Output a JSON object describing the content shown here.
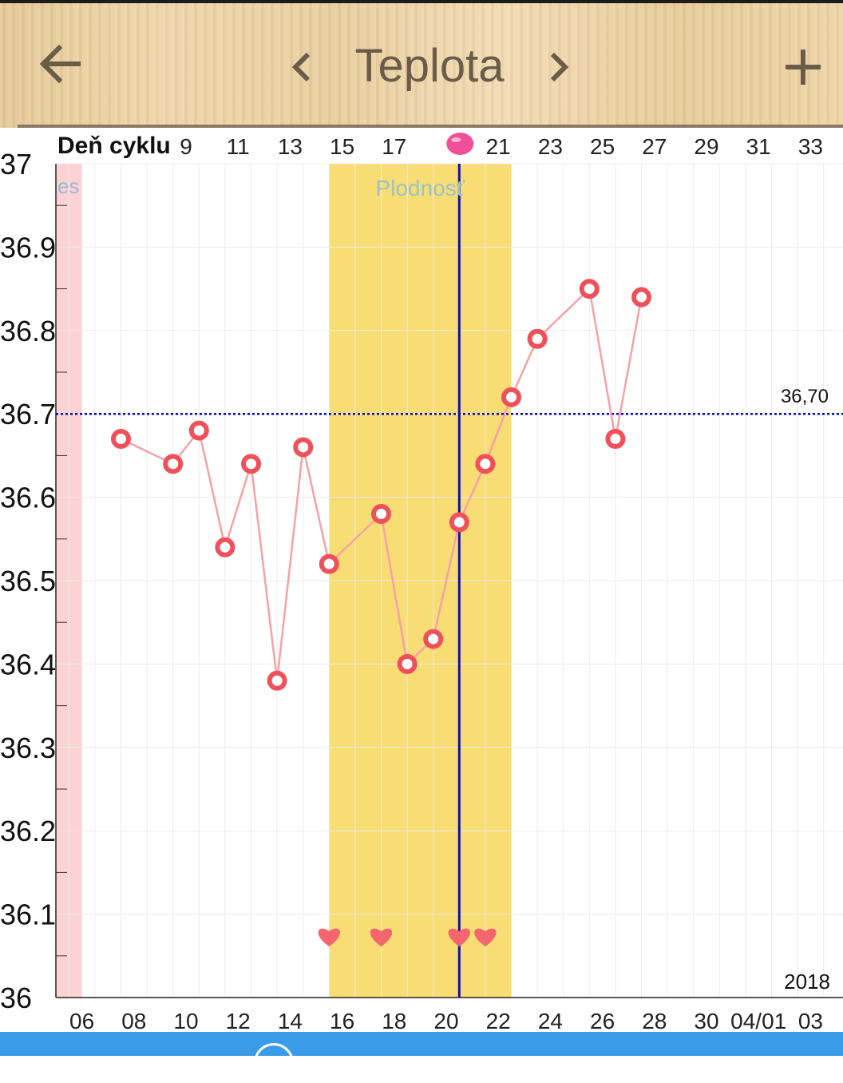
{
  "header": {
    "title": "Teplota",
    "back_icon": "arrow-left-icon",
    "prev_icon": "chevron-left-icon",
    "next_icon": "chevron-right-icon",
    "add_icon": "plus-icon"
  },
  "chart_data": {
    "type": "line",
    "cycle_day_label": "Deň cyklu",
    "cycle_days": [
      "9",
      "11",
      "13",
      "15",
      "17",
      "21",
      "23",
      "25",
      "27",
      "29",
      "31",
      "33"
    ],
    "ovulation_cycle_day": 19,
    "x_tick_labels": [
      "06",
      "08",
      "10",
      "12",
      "14",
      "16",
      "18",
      "20",
      "22",
      "24",
      "26",
      "28",
      "30",
      "04/01",
      "03"
    ],
    "y_tick_labels": [
      "36",
      "36.1",
      "36.2",
      "36.3",
      "36.4",
      "36.5",
      "36.6",
      "36.7",
      "36.8",
      "36.9",
      "37"
    ],
    "ylim": [
      36.0,
      37.0
    ],
    "xlim": [
      "2018-03-05",
      "2018-04-04"
    ],
    "year_label": "2018",
    "coverline": {
      "value": 36.7,
      "label": "36,70"
    },
    "period_band": {
      "from": "2018-03-05",
      "to": "2018-03-06",
      "label": "es"
    },
    "fertile_window": {
      "from": "2018-03-15",
      "to": "2018-03-22",
      "label": "Plodnosť"
    },
    "ovulation_day": "2018-03-20",
    "intercourse_days": [
      "2018-03-15",
      "2018-03-17",
      "2018-03-20",
      "2018-03-21"
    ],
    "series": [
      {
        "x": [
          "2018-03-07",
          "2018-03-09",
          "2018-03-10",
          "2018-03-11",
          "2018-03-12",
          "2018-03-13",
          "2018-03-14",
          "2018-03-15",
          "2018-03-17",
          "2018-03-18",
          "2018-03-19",
          "2018-03-20",
          "2018-03-21",
          "2018-03-22",
          "2018-03-23",
          "2018-03-25",
          "2018-03-26",
          "2018-03-27"
        ],
        "values": [
          36.67,
          36.64,
          36.68,
          36.54,
          36.64,
          36.38,
          36.66,
          36.52,
          36.58,
          36.4,
          36.43,
          36.57,
          36.64,
          36.72,
          36.79,
          36.85,
          36.67,
          36.84
        ]
      }
    ],
    "colors": {
      "line": "#f4a2a6",
      "marker": "#f0505a",
      "fertile": "#f8dc74",
      "period": "#fdd2d3",
      "ovulation_line": "#1010a8",
      "coverline": "#0000cc",
      "heart": "#f4656e",
      "ovulation_dot": "#f0509a"
    }
  },
  "footer": {
    "bar_color": "#3a9be8"
  }
}
